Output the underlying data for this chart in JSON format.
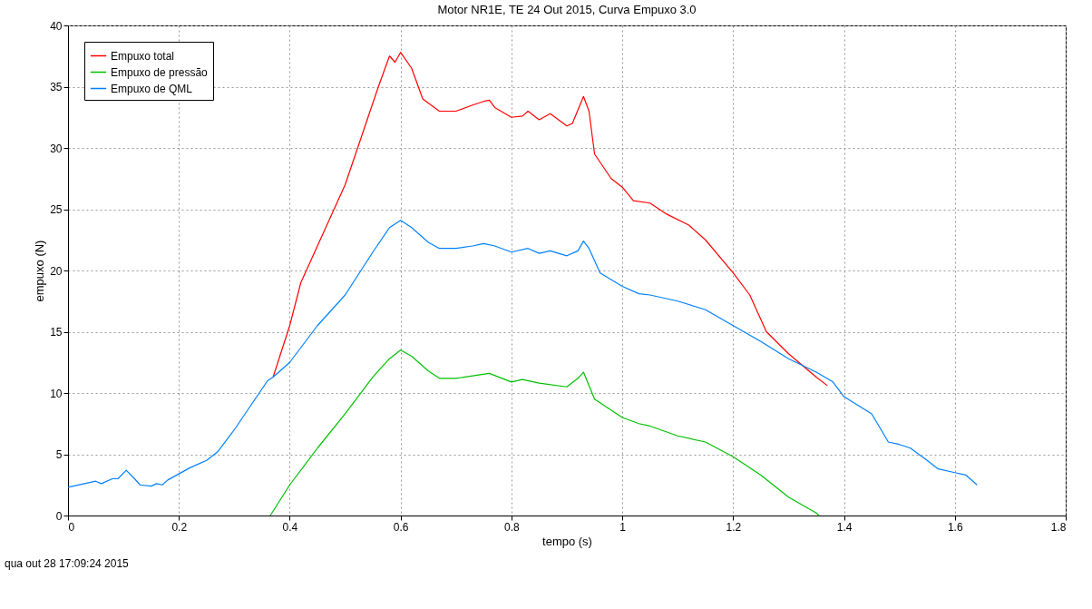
{
  "chart_data": {
    "type": "line",
    "title": "Motor NR1E, TE 24 Out 2015, Curva Empuxo 3.0",
    "xlabel": "tempo (s)",
    "ylabel": "empuxo (N)",
    "xlim": [
      0,
      1.8
    ],
    "xticks": [
      0,
      0.2,
      0.4,
      0.6,
      0.8,
      1,
      1.2,
      1.4,
      1.6,
      1.8
    ],
    "ylim": [
      0,
      40
    ],
    "yticks": [
      0,
      5,
      10,
      15,
      20,
      25,
      30,
      35,
      40
    ],
    "grid": true,
    "legend": "top left",
    "line_style": "solid",
    "marker": "none",
    "annotations": [
      "qua out 28 17:09:24 2015"
    ],
    "series": [
      {
        "name": "Empuxo total",
        "color": "#ff0000",
        "x": [
          0.37,
          0.4,
          0.42,
          0.44,
          0.47,
          0.5,
          0.53,
          0.56,
          0.58,
          0.59,
          0.6,
          0.62,
          0.64,
          0.67,
          0.7,
          0.73,
          0.75,
          0.76,
          0.77,
          0.8,
          0.82,
          0.83,
          0.85,
          0.87,
          0.9,
          0.91,
          0.93,
          0.94,
          0.95,
          0.98,
          1.0,
          1.02,
          1.05,
          1.08,
          1.12,
          1.15,
          1.2,
          1.23,
          1.26,
          1.3,
          1.35,
          1.37
        ],
        "values": [
          11.3,
          15.5,
          19,
          21,
          24,
          27,
          31,
          35,
          37.5,
          37,
          37.8,
          36.5,
          34,
          33,
          33,
          33.5,
          33.8,
          33.9,
          33.3,
          32.5,
          32.6,
          33,
          32.3,
          32.8,
          31.8,
          32,
          34.2,
          33,
          29.5,
          27.5,
          26.8,
          25.7,
          25.5,
          24.6,
          23.7,
          22.5,
          19.8,
          18,
          15,
          13.2,
          11.3,
          10.6
        ]
      },
      {
        "name": "Empuxo de pressão",
        "color": "#00c000",
        "x": [
          0.365,
          0.4,
          0.45,
          0.5,
          0.55,
          0.58,
          0.6,
          0.62,
          0.65,
          0.67,
          0.7,
          0.73,
          0.76,
          0.8,
          0.82,
          0.85,
          0.9,
          0.92,
          0.93,
          0.95,
          1.0,
          1.03,
          1.05,
          1.1,
          1.15,
          1.2,
          1.25,
          1.3,
          1.35,
          1.355
        ],
        "values": [
          0,
          2.5,
          5.5,
          8.3,
          11.3,
          12.8,
          13.5,
          13,
          11.8,
          11.2,
          11.2,
          11.4,
          11.6,
          10.9,
          11.1,
          10.8,
          10.5,
          11.2,
          11.7,
          9.5,
          8,
          7.5,
          7.3,
          6.5,
          6,
          4.8,
          3.3,
          1.5,
          0.2,
          0
        ]
      },
      {
        "name": "Empuxo de QML",
        "color": "#0080ff",
        "x": [
          0,
          0.05,
          0.06,
          0.08,
          0.09,
          0.105,
          0.12,
          0.13,
          0.15,
          0.16,
          0.17,
          0.18,
          0.2,
          0.22,
          0.25,
          0.27,
          0.3,
          0.33,
          0.36,
          0.37,
          0.4,
          0.45,
          0.5,
          0.55,
          0.58,
          0.6,
          0.62,
          0.65,
          0.67,
          0.7,
          0.73,
          0.75,
          0.77,
          0.8,
          0.83,
          0.85,
          0.87,
          0.9,
          0.92,
          0.93,
          0.94,
          0.96,
          1.0,
          1.03,
          1.05,
          1.1,
          1.15,
          1.2,
          1.25,
          1.3,
          1.35,
          1.38,
          1.4,
          1.45,
          1.48,
          1.5,
          1.52,
          1.55,
          1.57,
          1.6,
          1.62,
          1.64
        ],
        "values": [
          2.3,
          2.8,
          2.6,
          3.0,
          3.0,
          3.7,
          3.0,
          2.5,
          2.4,
          2.6,
          2.5,
          2.9,
          3.4,
          3.9,
          4.5,
          5.2,
          7,
          9,
          11,
          11.3,
          12.5,
          15.5,
          18,
          21.5,
          23.5,
          24.1,
          23.5,
          22.3,
          21.8,
          21.8,
          22.0,
          22.2,
          22,
          21.5,
          21.8,
          21.4,
          21.6,
          21.2,
          21.6,
          22.4,
          21.8,
          19.8,
          18.7,
          18.1,
          18,
          17.5,
          16.8,
          15.5,
          14.2,
          12.8,
          11.7,
          10.9,
          9.7,
          8.3,
          6.0,
          5.8,
          5.5,
          4.5,
          3.8,
          3.5,
          3.3,
          2.5
        ]
      }
    ]
  }
}
